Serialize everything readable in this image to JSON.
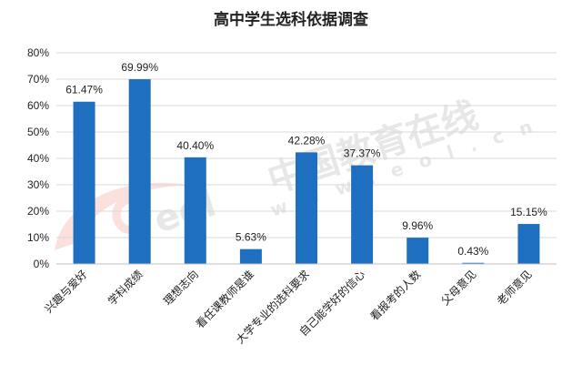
{
  "chart_data": {
    "type": "bar",
    "title": "高中学生选科依据调查",
    "xlabel": "",
    "ylabel": "",
    "categories": [
      "兴趣与爱好",
      "学科成绩",
      "理想志向",
      "看任课教师是谁",
      "大学专业的选科要求",
      "自己能学好的信心",
      "看报考的人数",
      "父母意见",
      "老师意见"
    ],
    "values": [
      61.47,
      69.99,
      40.4,
      5.63,
      42.28,
      37.37,
      9.96,
      0.43,
      15.15
    ],
    "value_labels": [
      "61.47%",
      "69.99%",
      "40.40%",
      "5.63%",
      "42.28%",
      "37.37%",
      "9.96%",
      "0.43%",
      "15.15%"
    ],
    "ylim": [
      0,
      80
    ],
    "yticks": [
      0,
      10,
      20,
      30,
      40,
      50,
      60,
      70,
      80
    ],
    "ytick_labels": [
      "0%",
      "10%",
      "20%",
      "30%",
      "40%",
      "50%",
      "60%",
      "70%",
      "80%"
    ],
    "grid": true,
    "legend": "none",
    "bar_color": "#1F6FC1",
    "grid_color": "#D9D9D9",
    "axis_color": "#BFBFBF"
  },
  "watermark": {
    "brand": "中国教育在线",
    "url": "w w w . e o l . c n",
    "logo_text": "eol",
    "colors": {
      "red": "#E8433A",
      "gray": "#6E6E6E",
      "faint": "#E3E3E3"
    }
  }
}
